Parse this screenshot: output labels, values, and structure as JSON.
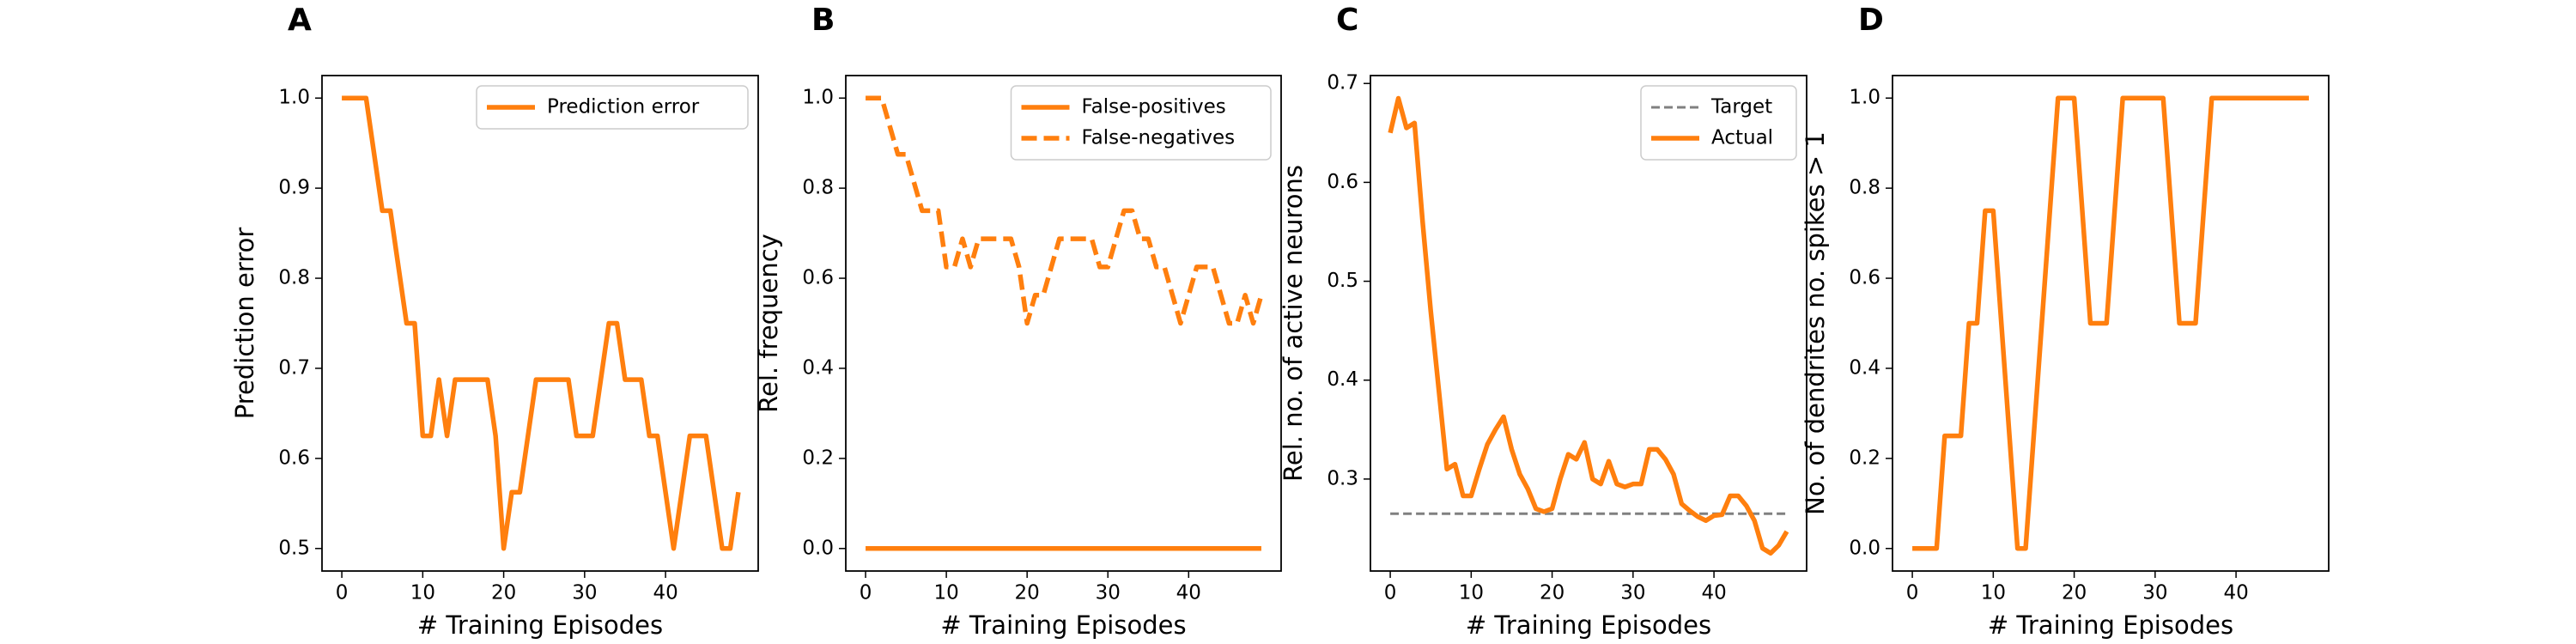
{
  "chart_data": [
    {
      "type": "line",
      "title": "A",
      "xlabel": "# Training Episodes",
      "ylabel": "Prediction error",
      "x": [
        0,
        1,
        2,
        3,
        4,
        5,
        6,
        7,
        8,
        9,
        10,
        11,
        12,
        13,
        14,
        15,
        16,
        17,
        18,
        19,
        20,
        21,
        22,
        23,
        24,
        25,
        26,
        27,
        28,
        29,
        30,
        31,
        32,
        33,
        34,
        35,
        36,
        37,
        38,
        39,
        40,
        41,
        42,
        43,
        44,
        45,
        46,
        47,
        48,
        49
      ],
      "series": [
        {
          "name": "Prediction error",
          "color": "#ff7f0e",
          "linestyle": "solid",
          "values": [
            1,
            1,
            1,
            1,
            0.9375,
            0.875,
            0.875,
            0.8125,
            0.75,
            0.75,
            0.625,
            0.625,
            0.6875,
            0.625,
            0.6875,
            0.6875,
            0.6875,
            0.6875,
            0.6875,
            0.625,
            0.5,
            0.5625,
            0.5625,
            0.625,
            0.6875,
            0.6875,
            0.6875,
            0.6875,
            0.6875,
            0.625,
            0.625,
            0.625,
            0.6875,
            0.75,
            0.75,
            0.6875,
            0.6875,
            0.6875,
            0.625,
            0.625,
            0.5625,
            0.5,
            0.5625,
            0.625,
            0.625,
            0.625,
            0.5625,
            0.5,
            0.5,
            0.5625
          ]
        }
      ],
      "xlim": [
        -2.45,
        51.45
      ],
      "xticks": [
        0,
        10,
        20,
        30,
        40
      ],
      "ylim": [
        0.475,
        1.025
      ],
      "yticks": [
        0.5,
        0.6,
        0.7,
        0.8,
        0.9,
        {
          "value": 1,
          "label": "1.0"
        }
      ],
      "legend": "upper right"
    },
    {
      "type": "line",
      "title": "B",
      "xlabel": "# Training Episodes",
      "ylabel": "Rel. frequency",
      "x": [
        0,
        1,
        2,
        3,
        4,
        5,
        6,
        7,
        8,
        9,
        10,
        11,
        12,
        13,
        14,
        15,
        16,
        17,
        18,
        19,
        20,
        21,
        22,
        23,
        24,
        25,
        26,
        27,
        28,
        29,
        30,
        31,
        32,
        33,
        34,
        35,
        36,
        37,
        38,
        39,
        40,
        41,
        42,
        43,
        44,
        45,
        46,
        47,
        48,
        49
      ],
      "series": [
        {
          "name": "False-positives",
          "color": "#ff7f0e",
          "linestyle": "solid",
          "values": [
            0,
            0,
            0,
            0,
            0,
            0,
            0,
            0,
            0,
            0,
            0,
            0,
            0,
            0,
            0,
            0,
            0,
            0,
            0,
            0,
            0,
            0,
            0,
            0,
            0,
            0,
            0,
            0,
            0,
            0,
            0,
            0,
            0,
            0,
            0,
            0,
            0,
            0,
            0,
            0,
            0,
            0,
            0,
            0,
            0,
            0,
            0,
            0,
            0,
            0
          ]
        },
        {
          "name": "False-negatives",
          "color": "#ff7f0e",
          "linestyle": "dashed",
          "values": [
            1,
            1,
            1,
            0.9375,
            0.875,
            0.875,
            0.8125,
            0.75,
            0.75,
            0.75,
            0.625,
            0.625,
            0.6875,
            0.625,
            0.6875,
            0.6875,
            0.6875,
            0.6875,
            0.6875,
            0.625,
            0.5,
            0.5625,
            0.5625,
            0.625,
            0.6875,
            0.6875,
            0.6875,
            0.6875,
            0.6875,
            0.625,
            0.625,
            0.6875,
            0.75,
            0.75,
            0.6875,
            0.6875,
            0.625,
            0.625,
            0.5625,
            0.5,
            0.5625,
            0.625,
            0.625,
            0.625,
            0.5625,
            0.5,
            0.5,
            0.5625,
            0.5,
            0.5625
          ]
        }
      ],
      "xlim": [
        -2.45,
        51.45
      ],
      "xticks": [
        0,
        10,
        20,
        30,
        40
      ],
      "ylim": [
        -0.05,
        1.05
      ],
      "yticks": [
        {
          "value": 0,
          "label": "0.0"
        },
        0.2,
        0.4,
        0.6,
        0.8,
        {
          "value": 1,
          "label": "1.0"
        }
      ],
      "legend": "upper right"
    },
    {
      "type": "line",
      "title": "C",
      "xlabel": "# Training Episodes",
      "ylabel": "Rel. no. of active neurons",
      "x": [
        0,
        1,
        2,
        3,
        4,
        5,
        6,
        7,
        8,
        9,
        10,
        11,
        12,
        13,
        14,
        15,
        16,
        17,
        18,
        19,
        20,
        21,
        22,
        23,
        24,
        25,
        26,
        27,
        28,
        29,
        30,
        31,
        32,
        33,
        34,
        35,
        36,
        37,
        38,
        39,
        40,
        41,
        42,
        43,
        44,
        45,
        46,
        47,
        48,
        49
      ],
      "series": [
        {
          "name": "Target",
          "color": "#808080",
          "linestyle": "dashed",
          "values": [
            0.265,
            0.265,
            0.265,
            0.265,
            0.265,
            0.265,
            0.265,
            0.265,
            0.265,
            0.265,
            0.265,
            0.265,
            0.265,
            0.265,
            0.265,
            0.265,
            0.265,
            0.265,
            0.265,
            0.265,
            0.265,
            0.265,
            0.265,
            0.265,
            0.265,
            0.265,
            0.265,
            0.265,
            0.265,
            0.265,
            0.265,
            0.265,
            0.265,
            0.265,
            0.265,
            0.265,
            0.265,
            0.265,
            0.265,
            0.265,
            0.265,
            0.265,
            0.265,
            0.265,
            0.265,
            0.265,
            0.265,
            0.265,
            0.265,
            0.265
          ]
        },
        {
          "name": "Actual",
          "color": "#ff7f0e",
          "linestyle": "solid",
          "values": [
            0.65,
            0.685,
            0.655,
            0.66,
            0.56,
            0.47,
            0.39,
            0.31,
            0.315,
            0.283,
            0.283,
            0.31,
            0.335,
            0.35,
            0.363,
            0.33,
            0.305,
            0.29,
            0.27,
            0.267,
            0.27,
            0.3,
            0.325,
            0.32,
            0.337,
            0.3,
            0.295,
            0.318,
            0.295,
            0.292,
            0.295,
            0.295,
            0.33,
            0.33,
            0.32,
            0.305,
            0.275,
            0.268,
            0.262,
            0.258,
            0.263,
            0.264,
            0.283,
            0.283,
            0.273,
            0.258,
            0.23,
            0.225,
            0.233,
            0.247
          ]
        }
      ],
      "xlim": [
        -2.45,
        51.45
      ],
      "xticks": [
        0,
        10,
        20,
        30,
        40
      ],
      "ylim": [
        0.207,
        0.708
      ],
      "yticks": [
        0.3,
        0.4,
        0.5,
        0.6,
        0.7
      ],
      "legend": "upper right"
    },
    {
      "type": "line",
      "title": "D",
      "xlabel": "# Training Episodes",
      "ylabel": "No. of dendrites no. spikes > 1",
      "x": [
        0,
        1,
        2,
        3,
        4,
        5,
        6,
        7,
        8,
        9,
        10,
        11,
        12,
        13,
        14,
        15,
        16,
        17,
        18,
        19,
        20,
        21,
        22,
        23,
        24,
        25,
        26,
        27,
        28,
        29,
        30,
        31,
        32,
        33,
        34,
        35,
        36,
        37,
        38,
        39,
        40,
        41,
        42,
        43,
        44,
        45,
        46,
        47,
        48,
        49
      ],
      "series": [
        {
          "name": null,
          "color": "#ff7f0e",
          "linestyle": "solid",
          "values": [
            0,
            0,
            0,
            0,
            0.25,
            0.25,
            0.25,
            0.5,
            0.5,
            0.75,
            0.75,
            0.5,
            0.25,
            0,
            0,
            0.25,
            0.5,
            0.75,
            1,
            1,
            1,
            0.75,
            0.5,
            0.5,
            0.5,
            0.75,
            1,
            1,
            1,
            1,
            1,
            1,
            0.75,
            0.5,
            0.5,
            0.5,
            0.75,
            1,
            1,
            1,
            1,
            1,
            1,
            1,
            1,
            1,
            1,
            1,
            1,
            1
          ]
        }
      ],
      "xlim": [
        -2.45,
        51.45
      ],
      "xticks": [
        0,
        10,
        20,
        30,
        40
      ],
      "ylim": [
        -0.05,
        1.05
      ],
      "yticks": [
        {
          "value": 0,
          "label": "0.0"
        },
        0.2,
        0.4,
        0.6,
        0.8,
        {
          "value": 1,
          "label": "1.0"
        }
      ]
    }
  ]
}
